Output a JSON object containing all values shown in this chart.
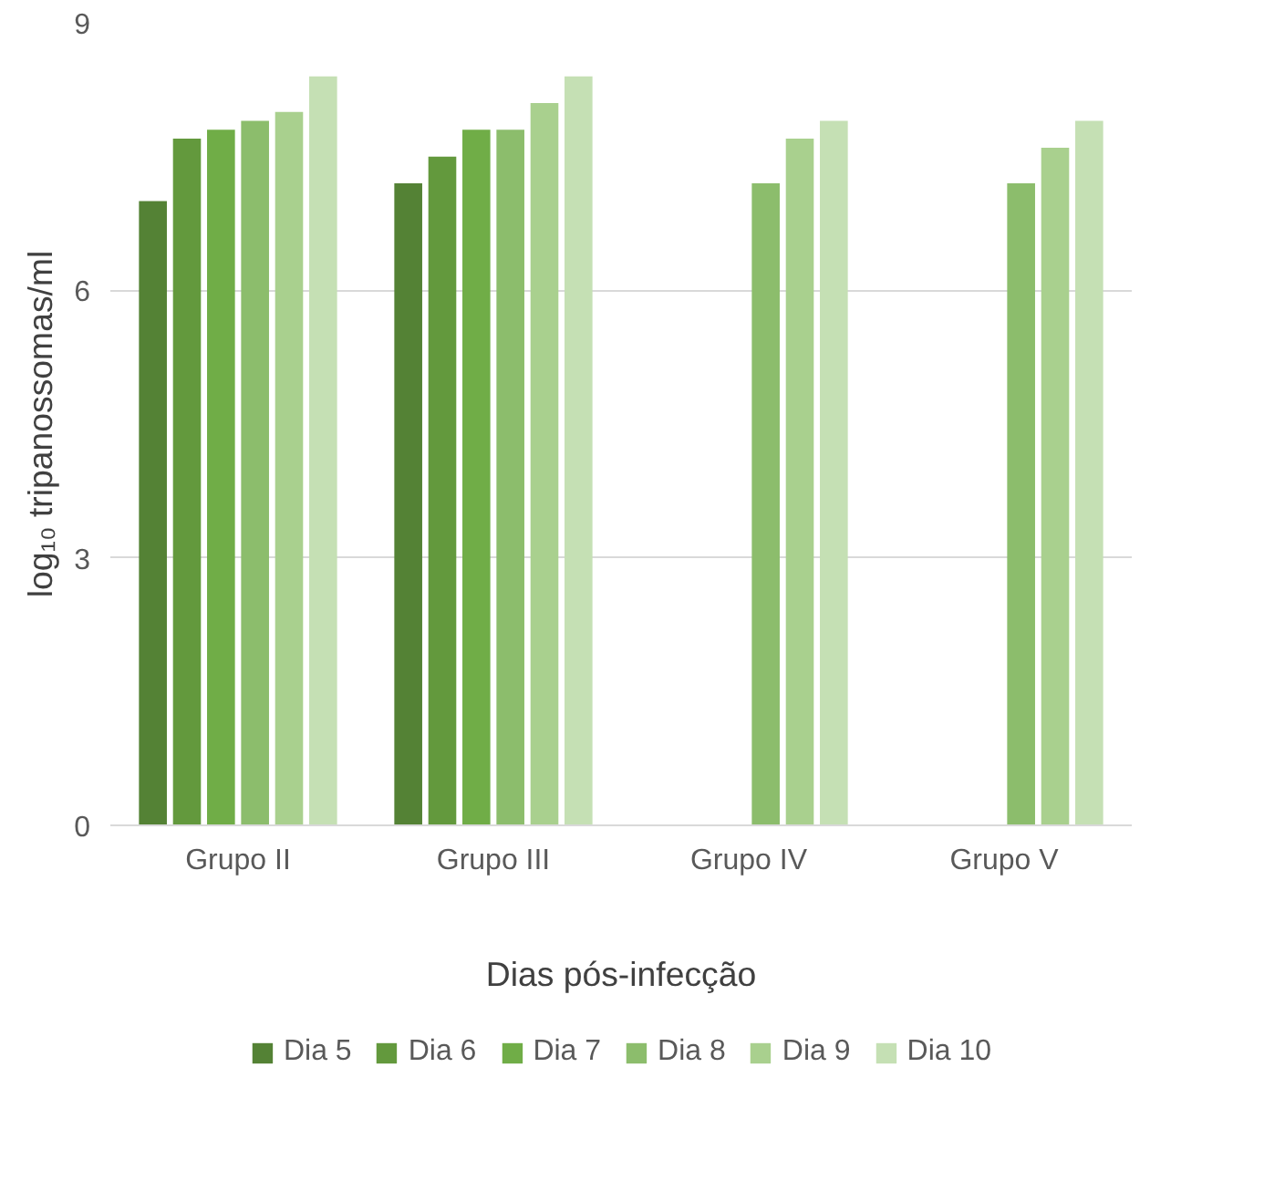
{
  "chart_data": {
    "type": "bar",
    "xlabel": "Dias pós-infecção",
    "ylabel": "log₁₀ tripanossomas/ml",
    "categories": [
      "Grupo II",
      "Grupo III",
      "Grupo IV",
      "Grupo V"
    ],
    "series": [
      {
        "name": "Dia 5",
        "color": "#548235",
        "values": [
          7.0,
          7.2,
          null,
          null
        ]
      },
      {
        "name": "Dia 6",
        "color": "#63993d",
        "values": [
          7.7,
          7.5,
          null,
          null
        ]
      },
      {
        "name": "Dia 7",
        "color": "#70ad47",
        "values": [
          7.8,
          7.8,
          null,
          null
        ]
      },
      {
        "name": "Dia 8",
        "color": "#8cbd6c",
        "values": [
          7.9,
          7.8,
          7.2,
          7.2
        ]
      },
      {
        "name": "Dia 9",
        "color": "#a9d08e",
        "values": [
          8.0,
          8.1,
          7.7,
          7.6
        ]
      },
      {
        "name": "Dia 10",
        "color": "#c5e0b4",
        "values": [
          8.4,
          8.4,
          7.9,
          7.9
        ]
      }
    ],
    "ylim": [
      0,
      9
    ],
    "yticks": [
      0,
      3,
      6,
      9
    ],
    "grid": "y",
    "legend": "bottom"
  }
}
